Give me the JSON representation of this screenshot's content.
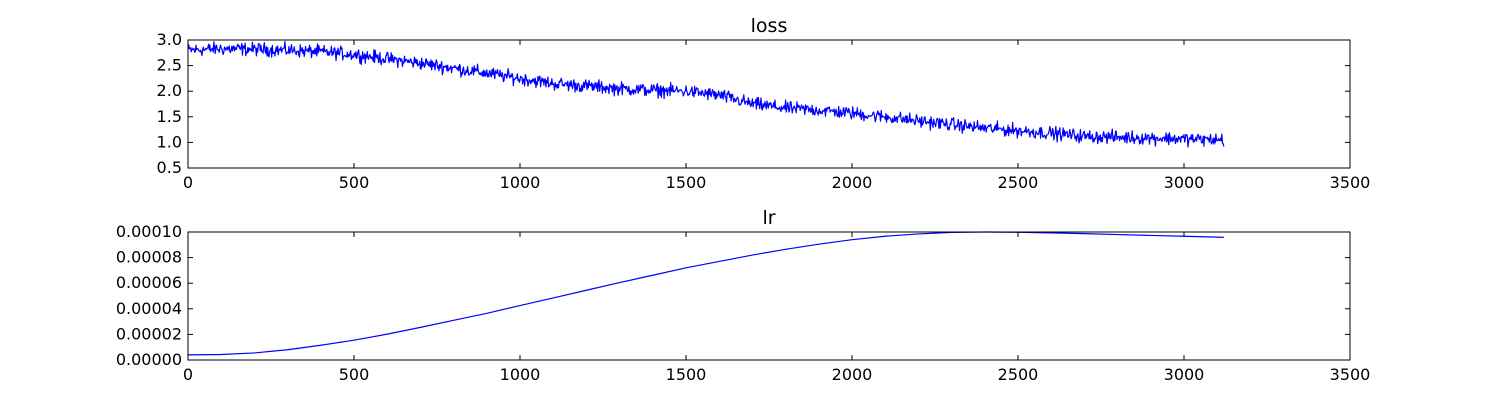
{
  "chart_data": [
    {
      "type": "line",
      "title": "loss",
      "xlim": [
        0,
        3500
      ],
      "ylim": [
        0.5,
        3.0
      ],
      "xticks": [
        0,
        500,
        1000,
        1500,
        2000,
        2500,
        3000,
        3500
      ],
      "yticks": [
        0.5,
        1.0,
        1.5,
        2.0,
        2.5,
        3.0
      ],
      "xtick_labels": [
        "0",
        "500",
        "1000",
        "1500",
        "2000",
        "2500",
        "3000",
        "3500"
      ],
      "ytick_labels": [
        "0.5",
        "1.0",
        "1.5",
        "2.0",
        "2.5",
        "3.0"
      ],
      "grid": false,
      "noise_amplitude": 0.09,
      "series": [
        {
          "color": "#0000ff",
          "x": [
            0,
            100,
            200,
            300,
            400,
            500,
            600,
            700,
            800,
            900,
            1000,
            1100,
            1200,
            1300,
            1400,
            1500,
            1600,
            1700,
            1800,
            1900,
            2000,
            2100,
            2200,
            2300,
            2400,
            2500,
            2600,
            2700,
            2800,
            2900,
            3000,
            3100,
            3120
          ],
          "y": [
            2.8,
            2.83,
            2.82,
            2.8,
            2.77,
            2.72,
            2.63,
            2.55,
            2.45,
            2.35,
            2.25,
            2.15,
            2.1,
            2.05,
            2.02,
            2.0,
            1.92,
            1.75,
            1.67,
            1.63,
            1.57,
            1.5,
            1.42,
            1.35,
            1.28,
            1.23,
            1.18,
            1.12,
            1.1,
            1.09,
            1.07,
            1.05,
            1.05
          ]
        }
      ]
    },
    {
      "type": "line",
      "title": "lr",
      "xlim": [
        0,
        3500
      ],
      "ylim": [
        0,
        0.0001
      ],
      "xticks": [
        0,
        500,
        1000,
        1500,
        2000,
        2500,
        3000,
        3500
      ],
      "yticks": [
        0,
        2e-05,
        4e-05,
        6e-05,
        8e-05,
        0.0001
      ],
      "xtick_labels": [
        "0",
        "500",
        "1000",
        "1500",
        "2000",
        "2500",
        "3000",
        "3500"
      ],
      "ytick_labels": [
        "0.00000",
        "0.00002",
        "0.00004",
        "0.00006",
        "0.00008",
        "0.00010"
      ],
      "grid": false,
      "series": [
        {
          "color": "#0000ff",
          "x": [
            0,
            100,
            200,
            300,
            400,
            500,
            600,
            700,
            800,
            900,
            1000,
            1100,
            1200,
            1300,
            1400,
            1500,
            1600,
            1700,
            1800,
            1900,
            2000,
            2100,
            2200,
            2300,
            2400,
            2500,
            2600,
            2700,
            2800,
            2900,
            3000,
            3100,
            3120
          ],
          "y": [
            4e-06,
            4.3e-06,
            5.5e-06,
            8e-06,
            1.15e-05,
            1.55e-05,
            2.02e-05,
            2.55e-05,
            3.1e-05,
            3.65e-05,
            4.25e-05,
            4.85e-05,
            5.45e-05,
            6.05e-05,
            6.62e-05,
            7.2e-05,
            7.7e-05,
            8.2e-05,
            8.65e-05,
            9.05e-05,
            9.4e-05,
            9.67e-05,
            9.85e-05,
            9.97e-05,
            0.0001,
            9.98e-05,
            9.93e-05,
            9.87e-05,
            9.8e-05,
            9.73e-05,
            9.67e-05,
            9.6e-05,
            9.58e-05
          ]
        }
      ]
    }
  ]
}
